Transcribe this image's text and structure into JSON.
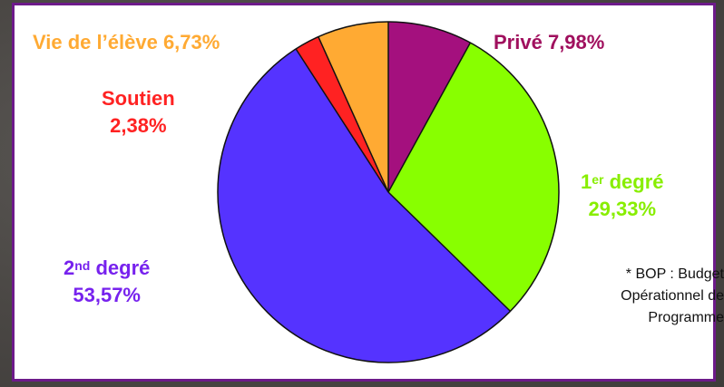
{
  "chart_data": {
    "type": "pie",
    "slices": [
      {
        "label_main": "Privé",
        "label_sup": "",
        "label_rest": "",
        "value": 7.98,
        "value_text": "7,98%",
        "color": "#a4107e",
        "label_color": "#a0105e"
      },
      {
        "label_main": "1",
        "label_sup": "er",
        "label_rest": " degré",
        "value": 29.33,
        "value_text": "29,33%",
        "color": "#88ff00",
        "label_color": "#88ee00"
      },
      {
        "label_main": "2",
        "label_sup": "nd",
        "label_rest": " degré",
        "value": 53.57,
        "value_text": "53,57%",
        "color": "#5533ff",
        "label_color": "#7722ee"
      },
      {
        "label_main": "Soutien",
        "label_sup": "",
        "label_rest": "",
        "value": 2.38,
        "value_text": "2,38%",
        "color": "#ff2222",
        "label_color": "#ff2222"
      },
      {
        "label_main": "Vie de l’élève",
        "label_sup": "",
        "label_rest": "",
        "value": 6.73,
        "value_text": "6,73%",
        "color": "#ffaa33",
        "label_color": "#ffaa33"
      }
    ],
    "note": "* BOP : Budget Opérationnel de Programme"
  }
}
